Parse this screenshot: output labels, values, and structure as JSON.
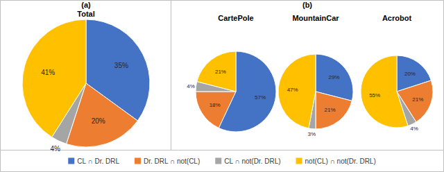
{
  "chart_data": [
    {
      "type": "pie",
      "title": "Total",
      "annotations": [
        "(a)"
      ],
      "categories": [
        "CL ∩ Dr. DRL",
        "Dr. DRL ∩ not(CL)",
        "CL ∩ not(Dr. DRL)",
        "not(CL) ∩ not(Dr. DRL)"
      ],
      "values": [
        35,
        20,
        4,
        41
      ],
      "value_labels": [
        "35%",
        "20%",
        "4%",
        "41%"
      ],
      "colors": [
        "#4472c4",
        "#ed7d31",
        "#a5a5a5",
        "#ffc000"
      ],
      "data_labels": true,
      "legend": "bottom"
    },
    {
      "type": "pie",
      "title": "CartePole",
      "annotations": [
        "(b)"
      ],
      "categories": [
        "CL ∩ Dr. DRL",
        "Dr. DRL ∩ not(CL)",
        "CL ∩ not(Dr. DRL)",
        "not(CL) ∩ not(Dr. DRL)"
      ],
      "values": [
        57,
        18,
        4,
        21
      ],
      "value_labels": [
        "57%",
        "18%",
        "4%",
        "21%"
      ],
      "colors": [
        "#4472c4",
        "#ed7d31",
        "#a5a5a5",
        "#ffc000"
      ],
      "data_labels": true
    },
    {
      "type": "pie",
      "title": "MountainCar",
      "categories": [
        "CL ∩ Dr. DRL",
        "Dr. DRL ∩ not(CL)",
        "CL ∩ not(Dr. DRL)",
        "not(CL) ∩ not(Dr. DRL)"
      ],
      "values": [
        29,
        21,
        3,
        47
      ],
      "value_labels": [
        "29%",
        "21%",
        "3%",
        "47%"
      ],
      "colors": [
        "#4472c4",
        "#ed7d31",
        "#a5a5a5",
        "#ffc000"
      ],
      "data_labels": true
    },
    {
      "type": "pie",
      "title": "Acrobot",
      "categories": [
        "CL ∩ Dr. DRL",
        "Dr. DRL ∩ not(CL)",
        "CL ∩ not(Dr. DRL)",
        "not(CL) ∩ not(Dr. DRL)"
      ],
      "values": [
        20,
        21,
        4,
        55
      ],
      "value_labels": [
        "20%",
        "21%",
        "4%",
        "55%"
      ],
      "colors": [
        "#4472c4",
        "#ed7d31",
        "#a5a5a5",
        "#ffc000"
      ],
      "data_labels": true
    }
  ]
}
